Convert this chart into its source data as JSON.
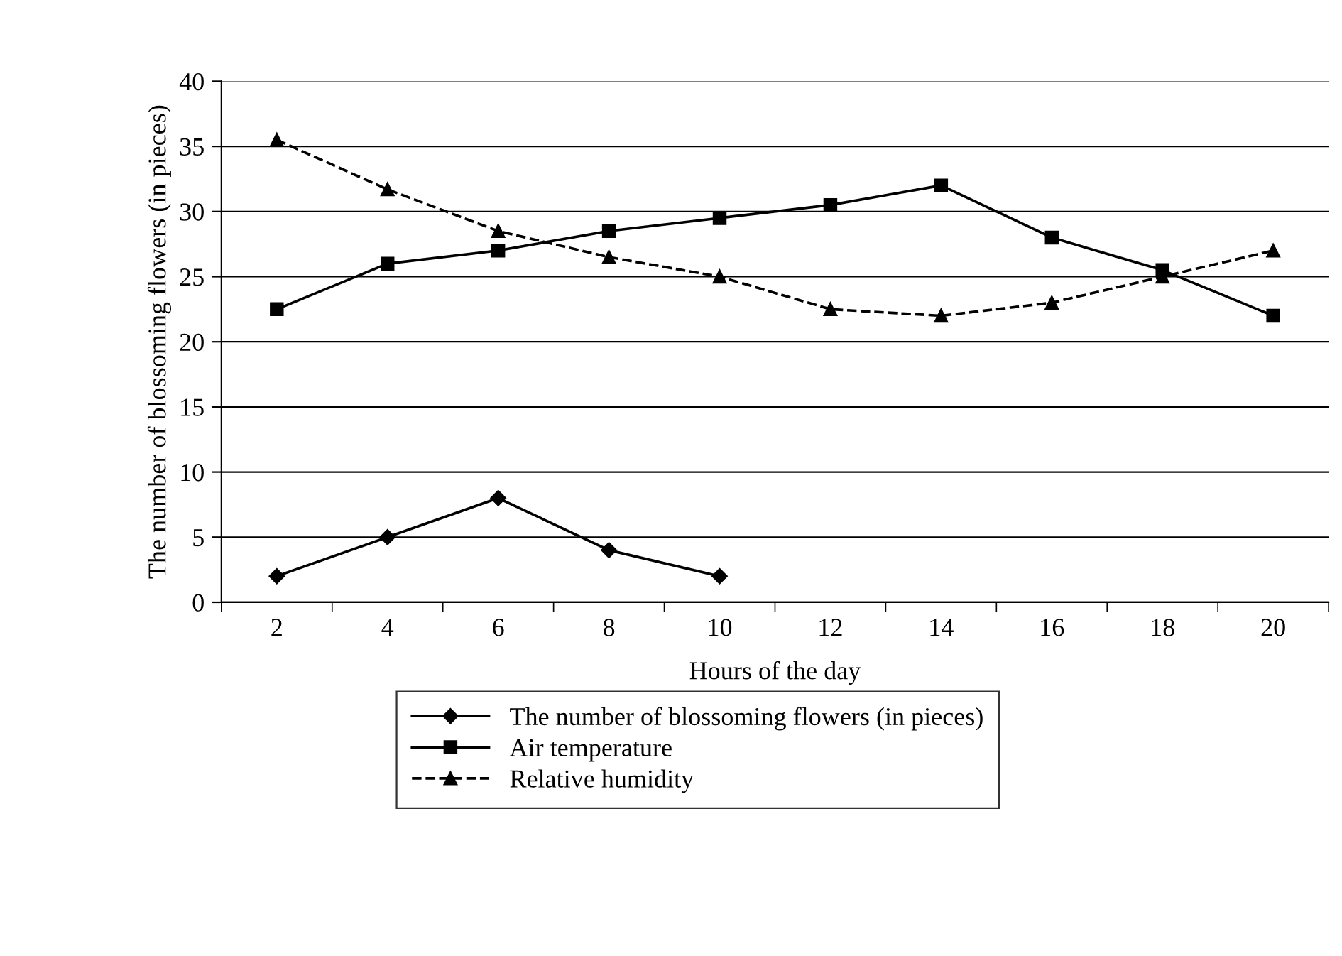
{
  "chart_data": {
    "type": "line",
    "xlabel": "Hours of the day",
    "ylabel": "The number of blossoming flowers (in pieces)",
    "categories": [
      "2",
      "4",
      "6",
      "8",
      "10",
      "12",
      "14",
      "16",
      "18",
      "20"
    ],
    "series": [
      {
        "name": "The number of blossoming flowers (in pieces)",
        "color": "#000000",
        "marker": "diamond",
        "line_style": "solid",
        "values": [
          2,
          5,
          8,
          4,
          2,
          null,
          null,
          null,
          null,
          null
        ]
      },
      {
        "name": "Air temperature",
        "color": "#000000",
        "marker": "square",
        "line_style": "solid",
        "values": [
          22.5,
          26,
          27,
          28.5,
          29.5,
          30.5,
          32,
          28,
          25.5,
          22
        ]
      },
      {
        "name": "Relative humidity",
        "color": "#000000",
        "marker": "triangle",
        "line_style": "dashed",
        "values": [
          35.5,
          31.7,
          28.5,
          26.5,
          25,
          22.5,
          22,
          23,
          25,
          27
        ]
      }
    ],
    "ylim": [
      0,
      40
    ],
    "yticks": [
      0,
      5,
      10,
      15,
      20,
      25,
      30,
      35,
      40
    ],
    "grid": "y",
    "legend": "bottom"
  }
}
